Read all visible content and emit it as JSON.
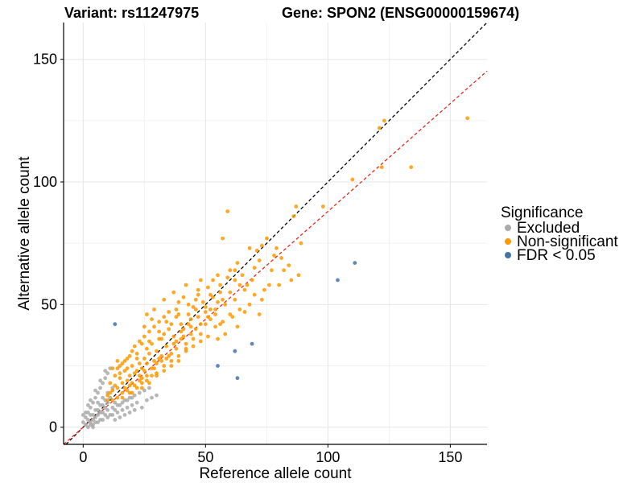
{
  "chart_data": {
    "type": "scatter",
    "title_left": "Variant: rs11247975",
    "title_right": "Gene: SPON2 (ENSG00000159674)",
    "xlabel": "Reference allele count",
    "ylabel": "Alternative allele count",
    "xlim": [
      -8,
      165
    ],
    "ylim": [
      -7,
      165
    ],
    "x_ticks": [
      0,
      50,
      100,
      150
    ],
    "y_ticks": [
      0,
      50,
      100,
      150
    ],
    "grid": true,
    "legend": {
      "title": "Significance",
      "position": "right",
      "entries": [
        {
          "label": "Excluded",
          "color": "#aaaaaa"
        },
        {
          "label": "Non-significant",
          "color": "#ff9900"
        },
        {
          "label": "FDR < 0.05",
          "color": "#4472a8"
        }
      ]
    },
    "reference_lines": [
      {
        "name": "identity",
        "slope": 1.0,
        "intercept": 0,
        "color": "#000000",
        "style": "dashed"
      },
      {
        "name": "fit",
        "slope": 0.88,
        "intercept": 0,
        "color": "#e8281c",
        "style": "dashed"
      }
    ],
    "series": [
      {
        "group": "Non-significant",
        "color": "#ff9900",
        "points": [
          [
            157,
            126
          ],
          [
            121,
            122
          ],
          [
            123,
            125
          ],
          [
            122,
            106
          ],
          [
            134,
            106
          ],
          [
            98,
            90
          ],
          [
            110,
            101
          ],
          [
            59,
            88
          ],
          [
            57,
            77
          ],
          [
            87,
            90
          ],
          [
            86,
            86
          ],
          [
            75,
            77
          ],
          [
            73,
            74
          ],
          [
            68,
            73
          ],
          [
            63,
            67
          ],
          [
            60,
            64
          ],
          [
            79,
            73
          ],
          [
            67,
            58
          ],
          [
            70,
            65
          ],
          [
            47,
            56
          ],
          [
            53,
            60
          ],
          [
            55,
            51
          ],
          [
            48,
            60
          ],
          [
            84,
            66
          ],
          [
            85,
            60
          ],
          [
            80,
            58
          ],
          [
            73,
            52
          ],
          [
            89,
            75
          ],
          [
            88,
            62
          ],
          [
            78,
            70
          ],
          [
            72,
            68
          ],
          [
            62,
            60
          ],
          [
            56,
            55
          ],
          [
            52,
            48
          ],
          [
            45,
            49
          ],
          [
            50,
            47
          ],
          [
            46,
            52
          ],
          [
            43,
            42
          ],
          [
            38,
            45
          ],
          [
            41,
            40
          ],
          [
            39,
            46
          ],
          [
            44,
            38
          ],
          [
            36,
            42
          ],
          [
            40,
            36
          ],
          [
            35,
            40
          ],
          [
            33,
            38
          ],
          [
            37,
            34
          ],
          [
            34,
            33
          ],
          [
            31,
            36
          ],
          [
            30,
            31
          ],
          [
            28,
            34
          ],
          [
            32,
            29
          ],
          [
            29,
            27
          ],
          [
            27,
            30
          ],
          [
            26,
            26
          ],
          [
            25,
            28
          ],
          [
            24,
            24
          ],
          [
            23,
            26
          ],
          [
            22,
            23
          ],
          [
            21,
            22
          ],
          [
            20,
            25
          ],
          [
            19,
            21
          ],
          [
            18,
            19
          ],
          [
            17,
            23
          ],
          [
            16,
            18
          ],
          [
            15,
            20
          ],
          [
            14,
            16
          ],
          [
            13,
            17
          ],
          [
            12,
            15
          ],
          [
            11,
            14
          ],
          [
            10,
            13
          ],
          [
            16,
            14
          ],
          [
            18,
            24
          ],
          [
            20,
            18
          ],
          [
            22,
            28
          ],
          [
            24,
            20
          ],
          [
            26,
            32
          ],
          [
            28,
            24
          ],
          [
            30,
            26
          ],
          [
            32,
            36
          ],
          [
            34,
            28
          ],
          [
            36,
            30
          ],
          [
            38,
            32
          ],
          [
            40,
            42
          ],
          [
            42,
            34
          ],
          [
            44,
            44
          ],
          [
            46,
            40
          ],
          [
            48,
            38
          ],
          [
            50,
            42
          ],
          [
            52,
            44
          ],
          [
            54,
            46
          ],
          [
            56,
            42
          ],
          [
            58,
            50
          ],
          [
            60,
            46
          ],
          [
            62,
            52
          ],
          [
            64,
            48
          ],
          [
            66,
            56
          ],
          [
            68,
            50
          ],
          [
            70,
            54
          ],
          [
            72,
            46
          ],
          [
            74,
            56
          ],
          [
            76,
            58
          ],
          [
            82,
            64
          ],
          [
            19,
            29
          ],
          [
            21,
            33
          ],
          [
            23,
            35
          ],
          [
            25,
            37
          ],
          [
            27,
            39
          ],
          [
            29,
            41
          ],
          [
            31,
            43
          ],
          [
            33,
            45
          ],
          [
            35,
            47
          ],
          [
            25,
            41
          ],
          [
            28,
            44
          ],
          [
            31,
            28
          ],
          [
            24,
            16
          ],
          [
            27,
            18
          ],
          [
            30,
            21
          ],
          [
            33,
            23
          ],
          [
            36,
            25
          ],
          [
            39,
            27
          ],
          [
            42,
            31
          ],
          [
            45,
            33
          ],
          [
            48,
            35
          ],
          [
            51,
            37
          ],
          [
            54,
            41
          ],
          [
            57,
            43
          ],
          [
            14,
            27
          ],
          [
            12,
            24
          ],
          [
            15,
            22
          ],
          [
            17,
            16
          ],
          [
            19,
            14
          ],
          [
            21,
            17
          ],
          [
            23,
            19
          ],
          [
            26,
            21
          ],
          [
            29,
            24
          ],
          [
            32,
            27
          ],
          [
            35,
            29
          ],
          [
            38,
            35
          ],
          [
            41,
            37
          ],
          [
            44,
            41
          ],
          [
            47,
            45
          ],
          [
            50,
            49
          ],
          [
            53,
            53
          ],
          [
            56,
            58
          ],
          [
            59,
            61
          ],
          [
            62,
            64
          ],
          [
            65,
            62
          ],
          [
            69,
            60
          ],
          [
            71,
            72
          ],
          [
            63,
            41
          ],
          [
            58,
            38
          ],
          [
            55,
            36
          ],
          [
            61,
            45
          ],
          [
            66,
            47
          ],
          [
            39,
            51
          ],
          [
            37,
            55
          ],
          [
            33,
            52
          ],
          [
            42,
            58
          ],
          [
            29,
            48
          ],
          [
            26,
            46
          ],
          [
            24,
            34
          ],
          [
            22,
            30
          ],
          [
            20,
            31
          ],
          [
            18,
            28
          ],
          [
            16,
            26
          ],
          [
            14,
            24
          ],
          [
            11,
            18
          ],
          [
            13,
            21
          ],
          [
            15,
            25
          ],
          [
            17,
            27
          ],
          [
            10,
            11
          ],
          [
            12,
            11
          ],
          [
            14,
            12
          ],
          [
            16,
            12
          ],
          [
            18,
            15
          ],
          [
            20,
            14
          ],
          [
            22,
            16
          ],
          [
            24,
            18
          ],
          [
            26,
            19
          ],
          [
            28,
            21
          ],
          [
            30,
            22
          ],
          [
            33,
            25
          ],
          [
            36,
            27
          ],
          [
            39,
            29
          ],
          [
            42,
            32
          ],
          [
            45,
            36
          ],
          [
            48,
            42
          ],
          [
            51,
            45
          ],
          [
            54,
            48
          ],
          [
            57,
            52
          ],
          [
            60,
            55
          ],
          [
            64,
            58
          ],
          [
            43,
            50
          ],
          [
            47,
            54
          ],
          [
            51,
            57
          ],
          [
            55,
            62
          ],
          [
            77,
            64
          ],
          [
            81,
            69
          ],
          [
            27,
            35
          ],
          [
            31,
            39
          ],
          [
            34,
            43
          ],
          [
            38,
            48
          ],
          [
            41,
            53
          ],
          [
            19,
            17
          ],
          [
            23,
            21
          ],
          [
            25,
            23
          ],
          [
            37,
            37
          ],
          [
            40,
            39
          ],
          [
            43,
            46
          ],
          [
            46,
            48
          ],
          [
            49,
            51
          ],
          [
            52,
            54
          ]
        ]
      },
      {
        "group": "Excluded",
        "color": "#aaaaaa",
        "points": [
          [
            1,
            1
          ],
          [
            2,
            3
          ],
          [
            3,
            2
          ],
          [
            4,
            5
          ],
          [
            5,
            4
          ],
          [
            6,
            7
          ],
          [
            7,
            6
          ],
          [
            8,
            9
          ],
          [
            9,
            8
          ],
          [
            10,
            10
          ],
          [
            2,
            6
          ],
          [
            3,
            8
          ],
          [
            4,
            10
          ],
          [
            5,
            12
          ],
          [
            6,
            14
          ],
          [
            7,
            16
          ],
          [
            8,
            18
          ],
          [
            9,
            20
          ],
          [
            10,
            22
          ],
          [
            4,
            1
          ],
          [
            6,
            2
          ],
          [
            8,
            3
          ],
          [
            10,
            4
          ],
          [
            12,
            5
          ],
          [
            14,
            6
          ],
          [
            16,
            7
          ],
          [
            18,
            8
          ],
          [
            20,
            9
          ],
          [
            22,
            10
          ],
          [
            1,
            4
          ],
          [
            3,
            5
          ],
          [
            5,
            7
          ],
          [
            7,
            9
          ],
          [
            9,
            11
          ],
          [
            11,
            12
          ],
          [
            13,
            10
          ],
          [
            15,
            9
          ],
          [
            17,
            11
          ],
          [
            19,
            12
          ],
          [
            21,
            13
          ],
          [
            23,
            14
          ],
          [
            25,
            15
          ],
          [
            27,
            16
          ],
          [
            6,
            10
          ],
          [
            8,
            12
          ],
          [
            10,
            14
          ],
          [
            12,
            16
          ],
          [
            9,
            23
          ],
          [
            11,
            24
          ],
          [
            7,
            19
          ],
          [
            5,
            15
          ],
          [
            3,
            11
          ],
          [
            2,
            9
          ],
          [
            0,
            2
          ],
          [
            1,
            6
          ],
          [
            0,
            5
          ],
          [
            4,
            3
          ],
          [
            6,
            5
          ],
          [
            8,
            6
          ],
          [
            10,
            7
          ],
          [
            12,
            8
          ],
          [
            14,
            9
          ],
          [
            16,
            10
          ],
          [
            18,
            11
          ],
          [
            20,
            12
          ],
          [
            13,
            3
          ],
          [
            15,
            4
          ],
          [
            17,
            5
          ],
          [
            19,
            6
          ],
          [
            21,
            7
          ],
          [
            24,
            8
          ],
          [
            26,
            11
          ],
          [
            28,
            12
          ],
          [
            30,
            13
          ],
          [
            11,
            5
          ],
          [
            13,
            7
          ],
          [
            9,
            5
          ],
          [
            7,
            3
          ],
          [
            5,
            2
          ],
          [
            3,
            1
          ],
          [
            2,
            0
          ],
          [
            4,
            0
          ]
        ]
      },
      {
        "group": "FDR < 0.05",
        "color": "#4472a8",
        "points": [
          [
            13,
            42
          ],
          [
            111,
            67
          ],
          [
            104,
            60
          ],
          [
            69,
            34
          ],
          [
            62,
            31
          ],
          [
            55,
            25
          ],
          [
            63,
            20
          ]
        ]
      }
    ]
  }
}
